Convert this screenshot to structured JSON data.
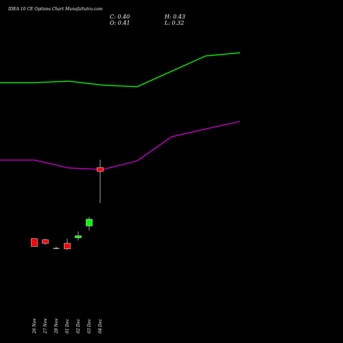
{
  "header": {
    "title": "IDEA 10 CE Options Chart MunafaSutra.com",
    "close_label": "C: 0.40",
    "open_label": "O: 0.41",
    "high_label": "H: 0.43",
    "low_label": "L: 0.32"
  },
  "chart_data": {
    "type": "candlestick",
    "title": "IDEA 10 CE Options Chart MunafaSutra.com",
    "categories": [
      "26 Nov",
      "27 Nov",
      "28 Nov",
      "01 Dec",
      "02 Dec",
      "03 Dec",
      "04 Dec"
    ],
    "candles": [
      {
        "date": "26 Nov",
        "open": 0.23,
        "high": 0.23,
        "low": 0.21,
        "close": 0.21,
        "direction": "down"
      },
      {
        "date": "27 Nov",
        "open": 0.227,
        "high": 0.23,
        "low": 0.213,
        "close": 0.218,
        "direction": "down"
      },
      {
        "date": "28 Nov",
        "open": 0.205,
        "high": 0.209,
        "low": 0.203,
        "close": 0.205,
        "direction": "flat"
      },
      {
        "date": "01 Dec",
        "open": 0.218,
        "high": 0.23,
        "low": 0.201,
        "close": 0.204,
        "direction": "down"
      },
      {
        "date": "02 Dec",
        "open": 0.232,
        "high": 0.248,
        "low": 0.225,
        "close": 0.237,
        "direction": "up"
      },
      {
        "date": "03 Dec",
        "open": 0.262,
        "high": 0.285,
        "low": 0.25,
        "close": 0.279,
        "direction": "up"
      },
      {
        "date": "04 Dec",
        "open": 0.41,
        "high": 0.43,
        "low": 0.32,
        "close": 0.4,
        "direction": "down"
      }
    ],
    "lines": [
      {
        "color": "#00ff00",
        "points": [
          [
            0,
            0.625
          ],
          [
            50,
            0.625
          ],
          [
            100,
            0.629
          ],
          [
            150,
            0.619
          ],
          [
            200,
            0.615
          ],
          [
            250,
            0.654
          ],
          [
            300,
            0.693
          ],
          [
            350,
            0.701
          ]
        ]
      },
      {
        "color": "#cc00cc",
        "points": [
          [
            0,
            0.429
          ],
          [
            50,
            0.429
          ],
          [
            100,
            0.409
          ],
          [
            150,
            0.405
          ],
          [
            200,
            0.427
          ],
          [
            250,
            0.488
          ],
          [
            300,
            0.508
          ],
          [
            350,
            0.527
          ]
        ]
      }
    ],
    "colors": {
      "background": "#000000",
      "up": "#00ff00",
      "down": "#ff0000",
      "flat": "#ffffff"
    }
  }
}
